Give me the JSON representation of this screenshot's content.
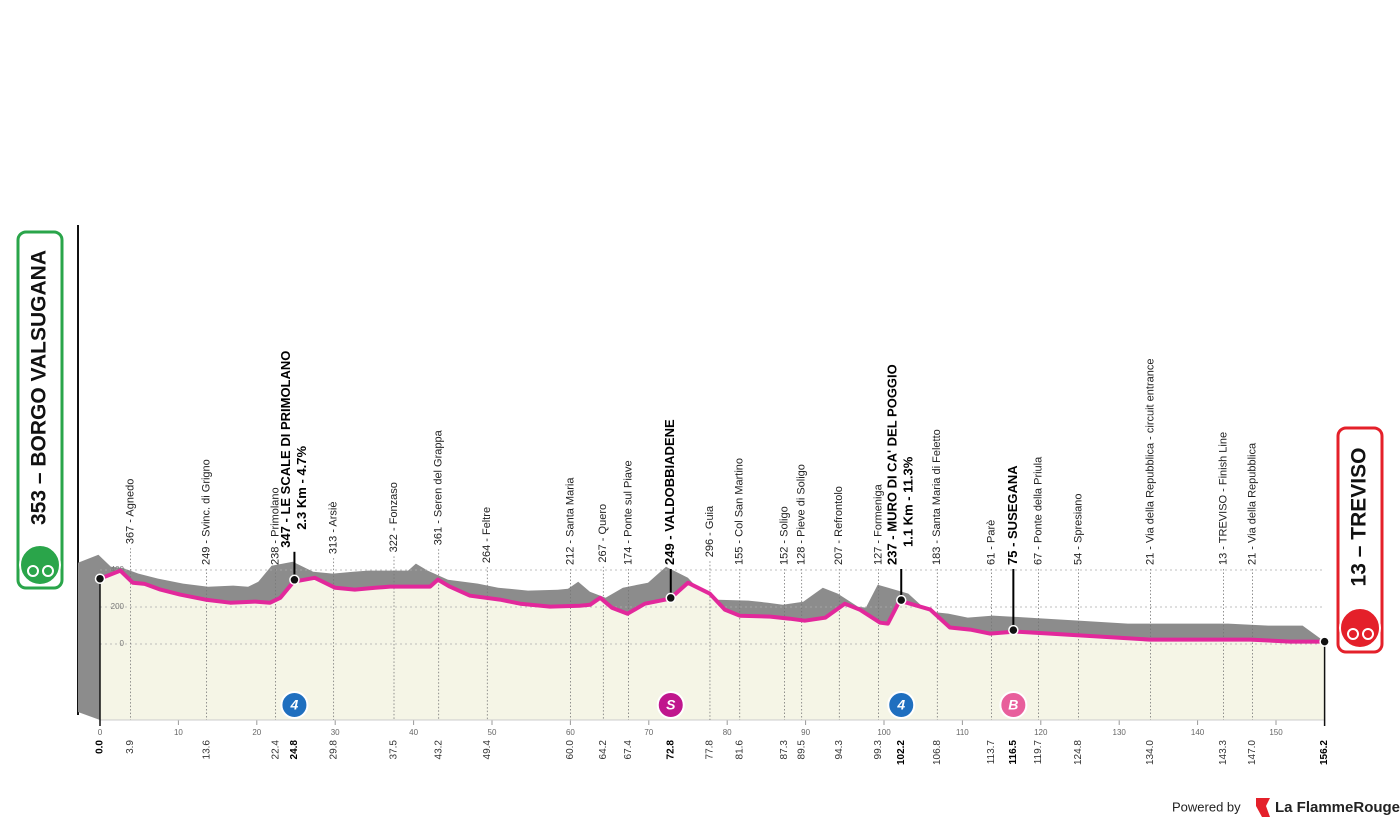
{
  "chart_data": {
    "type": "profile",
    "x": [
      0,
      2.6,
      4.2,
      5.7,
      7.7,
      10.2,
      13.4,
      16.6,
      19.8,
      21.7,
      23,
      24.7,
      27.4,
      30,
      32.5,
      35.1,
      37,
      42.1,
      43.1,
      44.6,
      47.2,
      51,
      53.6,
      57.4,
      61.2,
      62.5,
      63.8,
      65.3,
      67.3,
      69.5,
      72.7,
      75,
      77.8,
      79.7,
      81.6,
      85.5,
      88,
      89.9,
      92.5,
      95,
      96.9,
      99.5,
      100.5,
      102,
      105.9,
      108.4,
      111,
      113.5,
      116.7,
      121.2,
      127.6,
      133.9,
      140.3,
      146.7,
      151.8,
      156.2
    ],
    "values": [
      353,
      396,
      331,
      325,
      294,
      267,
      240,
      223,
      229,
      223,
      250,
      337,
      358,
      304,
      294,
      304,
      310,
      310,
      348,
      310,
      261,
      240,
      218,
      202,
      207,
      212,
      250,
      196,
      164,
      218,
      245,
      331,
      272,
      186,
      153,
      148,
      137,
      126,
      142,
      218,
      186,
      115,
      110,
      234,
      186,
      89,
      78,
      56,
      67,
      56,
      40,
      24,
      24,
      24,
      13,
      13
    ],
    "color": "#e2289b",
    "terrain_color": "#8c8c8c",
    "area_color": "#f5f5e6",
    "xlim": [
      0,
      156.2
    ],
    "xticks": [
      0,
      10,
      20,
      30,
      40,
      50,
      60,
      70,
      80,
      90,
      100,
      110,
      120,
      130,
      140,
      150
    ],
    "ylim": [
      0,
      400
    ],
    "yticks": [
      0,
      200,
      400
    ],
    "grid": true,
    "start": {
      "label": "353 – BORGO VALSUGANA",
      "alt": 353,
      "km": {
        "value": 0,
        "label": "0.0"
      },
      "color": "#2aa54a"
    },
    "finish": {
      "label": "13 – TREVISO",
      "alt": 13,
      "km": 156.2,
      "color": "#e4202a"
    },
    "waypoints": [
      {
        "label": "367 - Agnedo",
        "alt": 367,
        "km": 3.9
      },
      {
        "label": "249 - Svinc. di Grigno",
        "alt": 249,
        "km": 13.6
      },
      {
        "label": "238 - Primolano",
        "alt": 238,
        "km": 22.4
      },
      {
        "label": "347 - LE SCALE DI PRIMOLANO",
        "alt": 347,
        "km": 24.8,
        "bold": true,
        "note": "2.3 Km - 4.7%",
        "badge": {
          "label": "4",
          "color": "#1f6fbf"
        }
      },
      {
        "label": "313 - Arsiè",
        "alt": 313,
        "km": 29.8
      },
      {
        "label": "322 - Fonzaso",
        "alt": 322,
        "km": 37.5
      },
      {
        "label": "361 - Seren del Grappa",
        "alt": 361,
        "km": 43.2
      },
      {
        "label": "264 - Feltre",
        "alt": 264,
        "km": 49.4
      },
      {
        "label": "212 - Santa Maria",
        "alt": 212,
        "km": {
          "value": 60,
          "label": "60.0"
        }
      },
      {
        "label": "267 - Quero",
        "alt": 267,
        "km": 64.2
      },
      {
        "label": "174 - Ponte sul Piave",
        "alt": 174,
        "km": 67.4
      },
      {
        "label": "249 - VALDOBBIADENE",
        "alt": 249,
        "km": 72.8,
        "bold": true,
        "badge": {
          "label": "S",
          "color": "#c0168d"
        }
      },
      {
        "label": "296 - Guia",
        "alt": 296,
        "km": 77.8
      },
      {
        "label": "155 - Col San Martino",
        "alt": 155,
        "km": 81.6
      },
      {
        "label": "152 - Soligo",
        "alt": 152,
        "km": 87.3
      },
      {
        "label": "128 - Pieve di Soligo",
        "alt": 128,
        "km": 89.5
      },
      {
        "label": "207 - Refrontolo",
        "alt": 207,
        "km": 94.3
      },
      {
        "label": "127 - Formeniga",
        "alt": 127,
        "km": 99.3
      },
      {
        "label": "237 - MURO DI CA' DEL POGGIO",
        "alt": 237,
        "km": 102.2,
        "bold": true,
        "note": "1.1 Km - 11.3%",
        "badge": {
          "label": "4",
          "color": "#1f6fbf"
        }
      },
      {
        "label": "183 - Santa Maria di Feletto",
        "alt": 183,
        "km": 106.8
      },
      {
        "label": "61 - Parè",
        "alt": 61,
        "km": 113.7
      },
      {
        "label": "75 - SUSEGANA",
        "alt": 75,
        "km": 116.5,
        "bold": true,
        "badge": {
          "label": "B",
          "color": "#e85f9c"
        }
      },
      {
        "label": "67 - Ponte della Priula",
        "alt": 67,
        "km": 119.7
      },
      {
        "label": "54 - Spresiano",
        "alt": 54,
        "km": 124.8
      },
      {
        "label": "21 - Via della Repubblica - circuit entrance",
        "alt": 21,
        "km": {
          "value": 134,
          "label": "134.0"
        }
      },
      {
        "label": "13 - TREVISO - Finish Line",
        "alt": 13,
        "km": 143.3
      },
      {
        "label": "21 - Via della Repubblica",
        "alt": 21,
        "km": {
          "value": 147,
          "label": "147.0"
        }
      }
    ]
  },
  "footer": {
    "powered": "Powered by",
    "brand": "La FlammeRouge"
  }
}
